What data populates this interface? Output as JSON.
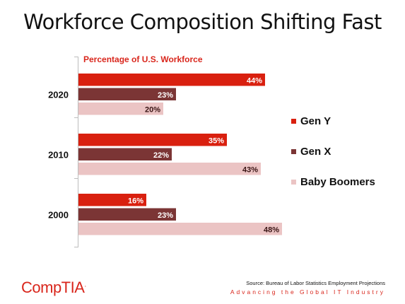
{
  "slide": {
    "title": "Workforce Composition Shifting Fast",
    "source": "Source: Bureau of Labor Statistics Employment Projections",
    "tagline": "Advancing the Global IT Industry",
    "logo_text": "CompTIA",
    "logo_mark": "."
  },
  "chart_data": {
    "type": "bar",
    "orientation": "horizontal",
    "title": "Percentage of U.S. Workforce",
    "categories": [
      "2020",
      "2010",
      "2000"
    ],
    "series": [
      {
        "name": "Gen Y",
        "color": "#d9200f",
        "values": [
          44,
          35,
          16
        ]
      },
      {
        "name": "Gen X",
        "color": "#7b3535",
        "values": [
          23,
          22,
          23
        ]
      },
      {
        "name": "Baby Boomers",
        "color": "#ebc4c4",
        "values": [
          20,
          43,
          48
        ]
      }
    ],
    "value_suffix": "%",
    "xlim": [
      0,
      50
    ],
    "grid": false,
    "legend_position": "right"
  }
}
